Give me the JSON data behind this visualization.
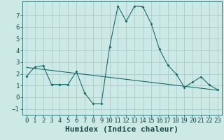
{
  "title": "",
  "xlabel": "Humidex (Indice chaleur)",
  "ylabel": "",
  "background_color": "#cce9e5",
  "grid_color": "#aacccc",
  "line_color": "#1a6b6b",
  "xlim": [
    -0.5,
    23.5
  ],
  "ylim": [
    -1.5,
    8.2
  ],
  "xticks": [
    0,
    1,
    2,
    3,
    4,
    5,
    6,
    7,
    8,
    9,
    10,
    11,
    12,
    13,
    14,
    15,
    16,
    17,
    18,
    19,
    20,
    21,
    22,
    23
  ],
  "yticks": [
    -1,
    0,
    1,
    2,
    3,
    4,
    5,
    6,
    7
  ],
  "curve1_x": [
    0,
    1,
    2,
    3,
    4,
    5,
    6,
    7,
    8,
    9,
    10,
    11,
    12,
    13,
    14,
    15,
    16,
    17,
    18,
    19,
    20,
    21,
    22,
    23
  ],
  "curve1_y": [
    1.8,
    2.6,
    2.7,
    1.1,
    1.1,
    1.1,
    2.2,
    0.35,
    -0.55,
    -0.55,
    4.3,
    7.8,
    6.5,
    7.8,
    7.75,
    6.3,
    4.1,
    2.75,
    2.0,
    0.85,
    1.3,
    1.75,
    1.05,
    0.65
  ],
  "curve2_x": [
    0,
    23
  ],
  "curve2_y": [
    2.55,
    0.6
  ],
  "fontsize_xlabel": 8,
  "tick_fontsize": 6.5
}
